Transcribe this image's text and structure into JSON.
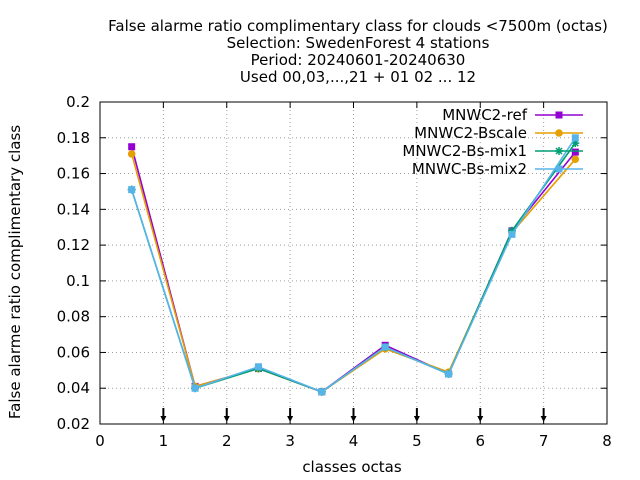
{
  "chart_data": {
    "type": "line",
    "title_lines": [
      "False alarme ratio complimentary class  for clouds <7500m (octas)",
      "Selection: SwedenForest      4 stations",
      "Period: 20240601-20240630",
      "Used 00,03,...,21 + 01 02 ... 12"
    ],
    "xlabel": "classes octas",
    "ylabel": "False alarme ratio complimentary class",
    "xlim": [
      0,
      8
    ],
    "ylim": [
      0.02,
      0.2
    ],
    "xticks": [
      0,
      1,
      2,
      3,
      4,
      5,
      6,
      7,
      8
    ],
    "yticks": [
      0.02,
      0.04,
      0.06,
      0.08,
      0.1,
      0.12,
      0.14,
      0.16,
      0.18,
      0.2
    ],
    "ytick_labels": [
      "0.02",
      "0.04",
      "0.06",
      "0.08",
      "0.1",
      "0.12",
      "0.14",
      "0.16",
      "0.18",
      "0.2"
    ],
    "arrow_markers_x": [
      1,
      2,
      3,
      4,
      5,
      6,
      7
    ],
    "grid": true,
    "legend_position": "top-right",
    "x": [
      0.5,
      1.5,
      2.5,
      3.5,
      4.5,
      5.5,
      6.5,
      7.5
    ],
    "series": [
      {
        "name": "MNWC2-ref",
        "color": "#9400d3",
        "marker": "filled-square",
        "values": [
          0.175,
          0.041,
          0.051,
          0.038,
          0.064,
          0.048,
          0.128,
          0.172
        ]
      },
      {
        "name": "MNWC2-Bscale",
        "color": "#e69f00",
        "marker": "filled-circle",
        "values": [
          0.171,
          0.041,
          0.051,
          0.038,
          0.062,
          0.049,
          0.127,
          0.168
        ]
      },
      {
        "name": "MNWC2-Bs-mix1",
        "color": "#009e73",
        "marker": "star",
        "values": [
          0.151,
          0.04,
          0.051,
          0.038,
          0.063,
          0.048,
          0.128,
          0.177
        ]
      },
      {
        "name": "MNWC-Bs-mix2",
        "color": "#56b4e9",
        "marker": "box",
        "values": [
          0.151,
          0.04,
          0.052,
          0.038,
          0.063,
          0.048,
          0.126,
          0.18
        ]
      }
    ]
  }
}
